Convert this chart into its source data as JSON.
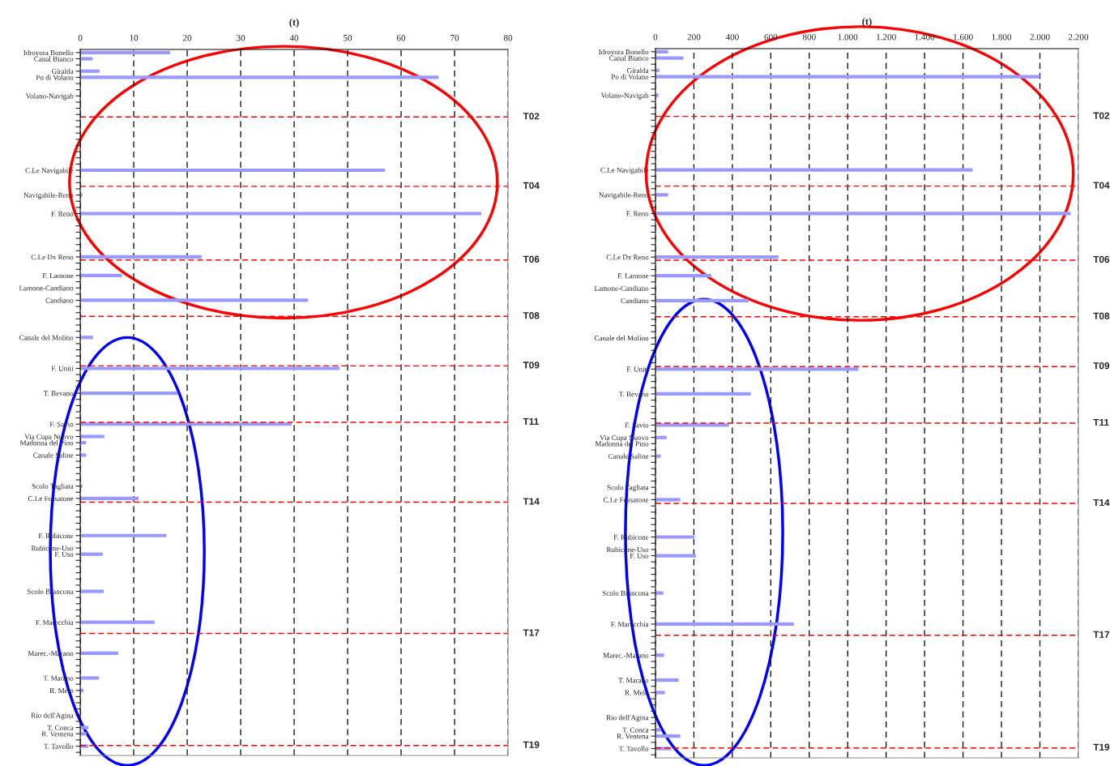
{
  "chart_data": [
    {
      "type": "bar",
      "orientation": "horizontal",
      "xlabel": "(t)",
      "color": "#9999ff",
      "grid": "x",
      "xlim": [
        0,
        80
      ],
      "xticks": [
        0,
        10,
        20,
        30,
        40,
        50,
        60,
        70,
        80
      ],
      "categories": [
        "Idroyora Bonello",
        "Canal Bianco",
        null,
        "Giralda",
        "Po di Volano",
        null,
        null,
        "Volano-Navigab",
        null,
        null,
        null,
        null,
        null,
        null,
        null,
        null,
        null,
        null,
        null,
        "C.Le Navigabile",
        null,
        null,
        null,
        "Navigabile-Reno",
        null,
        null,
        "F. Reno",
        null,
        null,
        null,
        null,
        null,
        null,
        "C.Le Dx Reno",
        null,
        null,
        "F. Lamone",
        null,
        "Lamone-Candiano",
        null,
        "Candiano",
        null,
        null,
        null,
        null,
        null,
        "Canale del Molino",
        null,
        null,
        null,
        null,
        "F. Uniti",
        null,
        null,
        null,
        "T. Bevano",
        null,
        null,
        null,
        null,
        "F. Savio",
        null,
        "Via Cupa Nuovo",
        "Madonna del Pino",
        null,
        "Canale Saline",
        null,
        null,
        null,
        null,
        "Scolo Tagliata",
        null,
        "C.Le Fossatone",
        null,
        null,
        null,
        null,
        null,
        "F. Rubicone",
        null,
        "Rubicone-Uso",
        "F. Uso",
        null,
        null,
        null,
        null,
        null,
        "Scolo Brancona",
        null,
        null,
        null,
        null,
        "F. Marecchia",
        null,
        null,
        null,
        null,
        "Marec.-Marano",
        null,
        null,
        null,
        "T. Marano",
        null,
        "R. Melo",
        null,
        null,
        null,
        "Rio dell'Agina",
        null,
        "T. Conca",
        "R. Ventena",
        null,
        "T. Tavollo",
        null
      ],
      "annotations": [
        "T02",
        "T04",
        "T06",
        "T08",
        "T09",
        "T11",
        "T14",
        "T17",
        "T19"
      ],
      "values": [
        16.8,
        2.3,
        null,
        3.6,
        67,
        null,
        null,
        null,
        null,
        null,
        null,
        null,
        null,
        null,
        null,
        null,
        null,
        null,
        null,
        57,
        null,
        null,
        null,
        0.4,
        null,
        null,
        75,
        null,
        null,
        null,
        null,
        null,
        null,
        22.7,
        null,
        null,
        7.8,
        null,
        0,
        null,
        42.6,
        null,
        null,
        null,
        null,
        null,
        2.4,
        null,
        null,
        null,
        null,
        48.5,
        null,
        null,
        null,
        18.2,
        null,
        null,
        null,
        null,
        39.5,
        null,
        4.5,
        1.1,
        null,
        1.1,
        null,
        null,
        null,
        null,
        0.4,
        null,
        10.9,
        null,
        null,
        null,
        null,
        null,
        16.1,
        null,
        0,
        4.2,
        null,
        null,
        null,
        null,
        null,
        4.4,
        null,
        null,
        null,
        null,
        13.9,
        null,
        null,
        null,
        null,
        7.1,
        null,
        null,
        null,
        3.5,
        null,
        0.6,
        null,
        null,
        null,
        0,
        null,
        1.5,
        1.2,
        null,
        1.5,
        null
      ]
    },
    {
      "type": "bar",
      "orientation": "horizontal",
      "xlabel": "(t)",
      "color": "#9999ff",
      "grid": "x",
      "xlim": [
        0,
        2200
      ],
      "xticks": [
        0,
        200,
        400,
        600,
        800,
        {
          "value": 1000,
          "label": "1.000"
        },
        {
          "value": 1200,
          "label": "1.200"
        },
        {
          "value": 1400,
          "label": "1.400"
        },
        {
          "value": 1600,
          "label": "1.600"
        },
        {
          "value": 1800,
          "label": "1.800"
        },
        {
          "value": 2000,
          "label": "2.000"
        },
        {
          "value": 2200,
          "label": "2.200"
        }
      ],
      "categories": [
        "Idroyora Bonello",
        "Canal Bianco",
        null,
        "Giralda",
        "Po di Volano",
        null,
        null,
        "Volano-Navigab",
        null,
        null,
        null,
        null,
        null,
        null,
        null,
        null,
        null,
        null,
        null,
        "C.Le Navigabile",
        null,
        null,
        null,
        "Navigabile-Reno",
        null,
        null,
        "F. Reno",
        null,
        null,
        null,
        null,
        null,
        null,
        "C.Le Dx Reno",
        null,
        null,
        "F. Lamone",
        null,
        "Lamone-Candiano",
        null,
        "Candiano",
        null,
        null,
        null,
        null,
        null,
        "Canale del Molino",
        null,
        null,
        null,
        null,
        "F. Uniti",
        null,
        null,
        null,
        "T. Bevano",
        null,
        null,
        null,
        null,
        "F. Savio",
        null,
        "Via Cupa Nuovo",
        "Madonna del Pino",
        null,
        "Canale Saline",
        null,
        null,
        null,
        null,
        "Scolo Tagliata",
        null,
        "C.Le Fossatone",
        null,
        null,
        null,
        null,
        null,
        "F. Rubicone",
        null,
        "Rubicone-Uso",
        "F. Uso",
        null,
        null,
        null,
        null,
        null,
        "Scolo Brancona",
        null,
        null,
        null,
        null,
        "F. Marecchia",
        null,
        null,
        null,
        null,
        "Marec.-Marano",
        null,
        null,
        null,
        "T. Marano",
        null,
        "R. Melo",
        null,
        null,
        null,
        "Rio dell'Agina",
        null,
        "T. Conca",
        "R. Ventena",
        null,
        "T. Tavollo",
        null
      ],
      "annotations": [
        "T02",
        "T04",
        "T06",
        "T08",
        "T09",
        "T11",
        "T14",
        "T17",
        "T19"
      ],
      "values": [
        66,
        146,
        null,
        20,
        2000,
        null,
        null,
        16,
        null,
        null,
        null,
        null,
        null,
        null,
        null,
        null,
        null,
        null,
        null,
        1650,
        null,
        null,
        null,
        66,
        null,
        null,
        2160,
        null,
        null,
        null,
        null,
        null,
        null,
        640,
        null,
        null,
        290,
        null,
        null,
        null,
        484,
        null,
        null,
        null,
        null,
        null,
        null,
        null,
        null,
        null,
        null,
        1056,
        null,
        null,
        null,
        496,
        null,
        null,
        null,
        null,
        382,
        null,
        58,
        null,
        null,
        28,
        null,
        null,
        null,
        null,
        null,
        null,
        129,
        null,
        null,
        null,
        null,
        null,
        203,
        null,
        null,
        210,
        null,
        null,
        null,
        null,
        null,
        41,
        null,
        null,
        null,
        null,
        720,
        null,
        null,
        null,
        null,
        45,
        null,
        null,
        null,
        121,
        null,
        49,
        null,
        null,
        null,
        0,
        null,
        28,
        129,
        null,
        83,
        null
      ]
    }
  ]
}
